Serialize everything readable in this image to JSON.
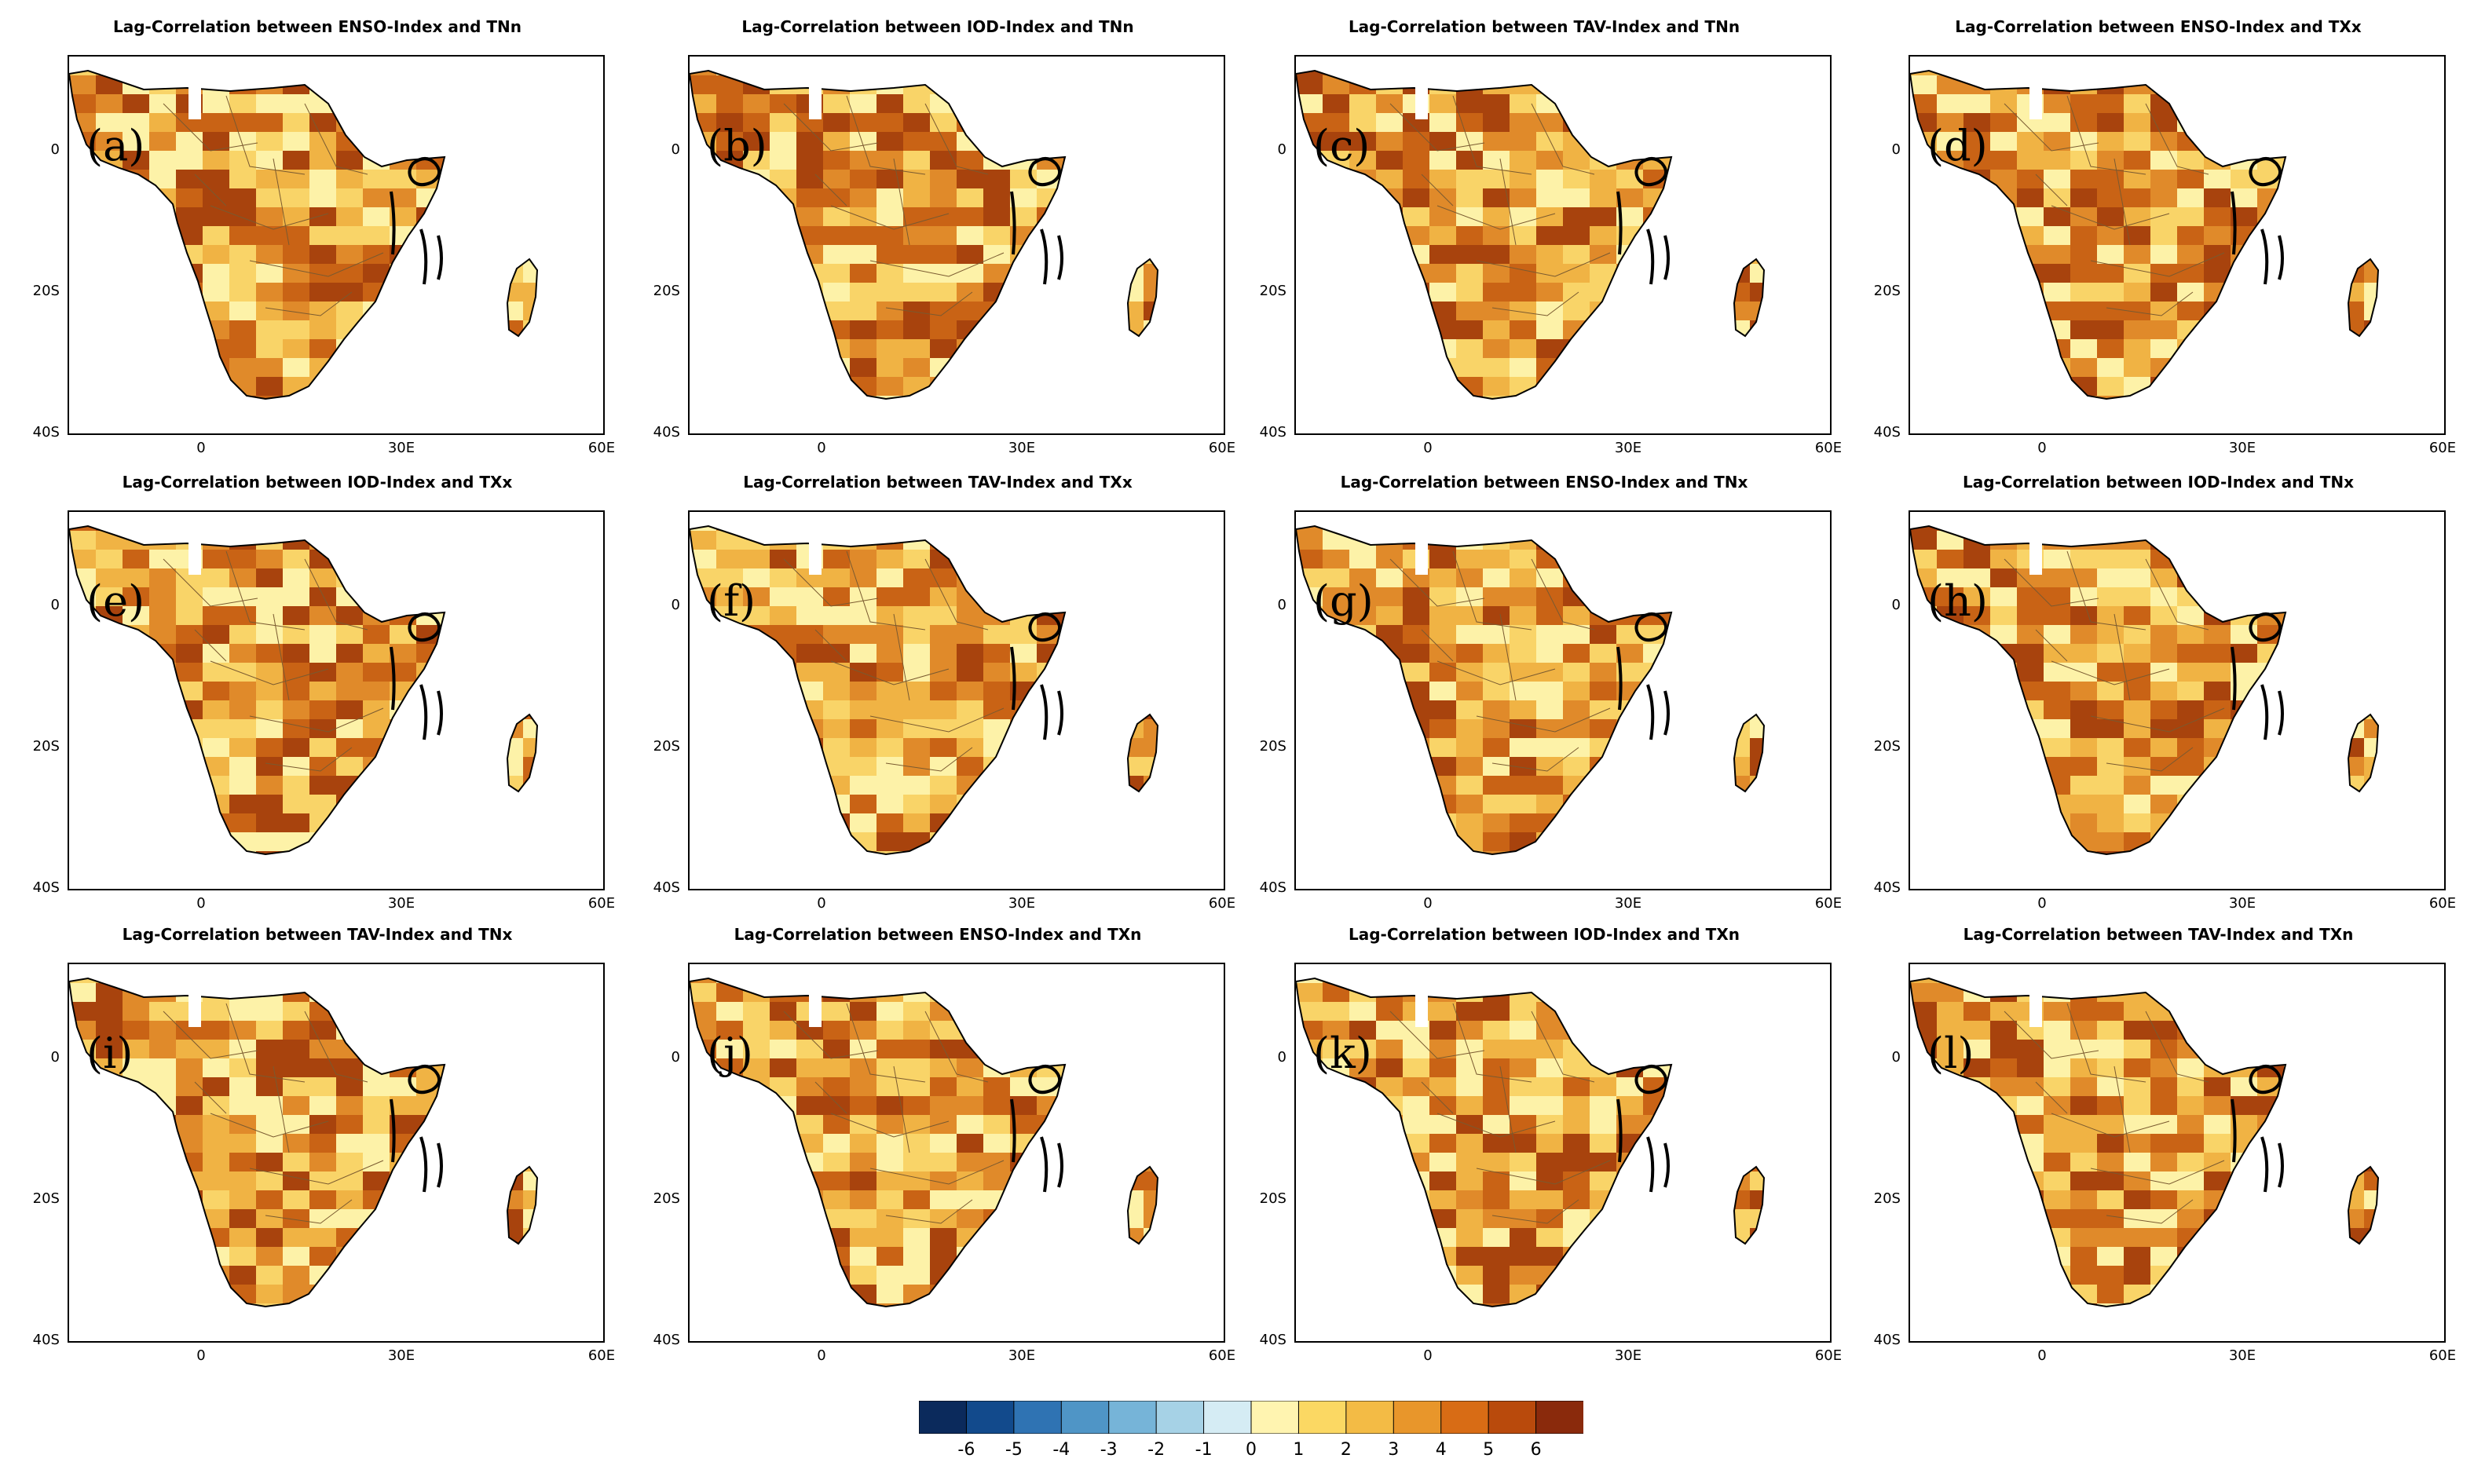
{
  "figure": {
    "axis_ticks": {
      "lat": [
        "0",
        "20S",
        "40S"
      ],
      "lon": [
        "0",
        "30E",
        "60E"
      ]
    },
    "palette": {
      "shades": [
        "#fdf2a8",
        "#f9d468",
        "#f0b344",
        "#e08a2a",
        "#c96315",
        "#a8430d"
      ],
      "ocean": "#ffffff",
      "land_outline": "#000000"
    },
    "panels": [
      {
        "label": "(a)",
        "title": "Lag-Correlation between ENSO-Index and TNn"
      },
      {
        "label": "(b)",
        "title": "Lag-Correlation between IOD-Index and TNn"
      },
      {
        "label": "(c)",
        "title": "Lag-Correlation between TAV-Index and TNn"
      },
      {
        "label": "(d)",
        "title": "Lag-Correlation between ENSO-Index and TXx"
      },
      {
        "label": "(e)",
        "title": "Lag-Correlation between IOD-Index and TXx"
      },
      {
        "label": "(f)",
        "title": "Lag-Correlation between TAV-Index and TXx"
      },
      {
        "label": "(g)",
        "title": "Lag-Correlation between ENSO-Index and TNx"
      },
      {
        "label": "(h)",
        "title": "Lag-Correlation between IOD-Index and TNx"
      },
      {
        "label": "(i)",
        "title": "Lag-Correlation between TAV-Index and TNx"
      },
      {
        "label": "(j)",
        "title": "Lag-Correlation between ENSO-Index and TXn"
      },
      {
        "label": "(k)",
        "title": "Lag-Correlation between IOD-Index and TXn"
      },
      {
        "label": "(l)",
        "title": "Lag-Correlation between TAV-Index and TXn"
      }
    ],
    "colorbar": {
      "labels": [
        "-6",
        "-5",
        "-4",
        "-3",
        "-2",
        "-1",
        "0",
        "1",
        "2",
        "3",
        "4",
        "5",
        "6"
      ],
      "colors": [
        "#0b2a5c",
        "#124a8c",
        "#2f73b3",
        "#4f95c6",
        "#76b4d8",
        "#a6d2e6",
        "#d5ecf4",
        "#fff4b0",
        "#fbd863",
        "#f3bb45",
        "#e8962b",
        "#d86c15",
        "#b94a0c",
        "#8a2a0c"
      ]
    }
  }
}
